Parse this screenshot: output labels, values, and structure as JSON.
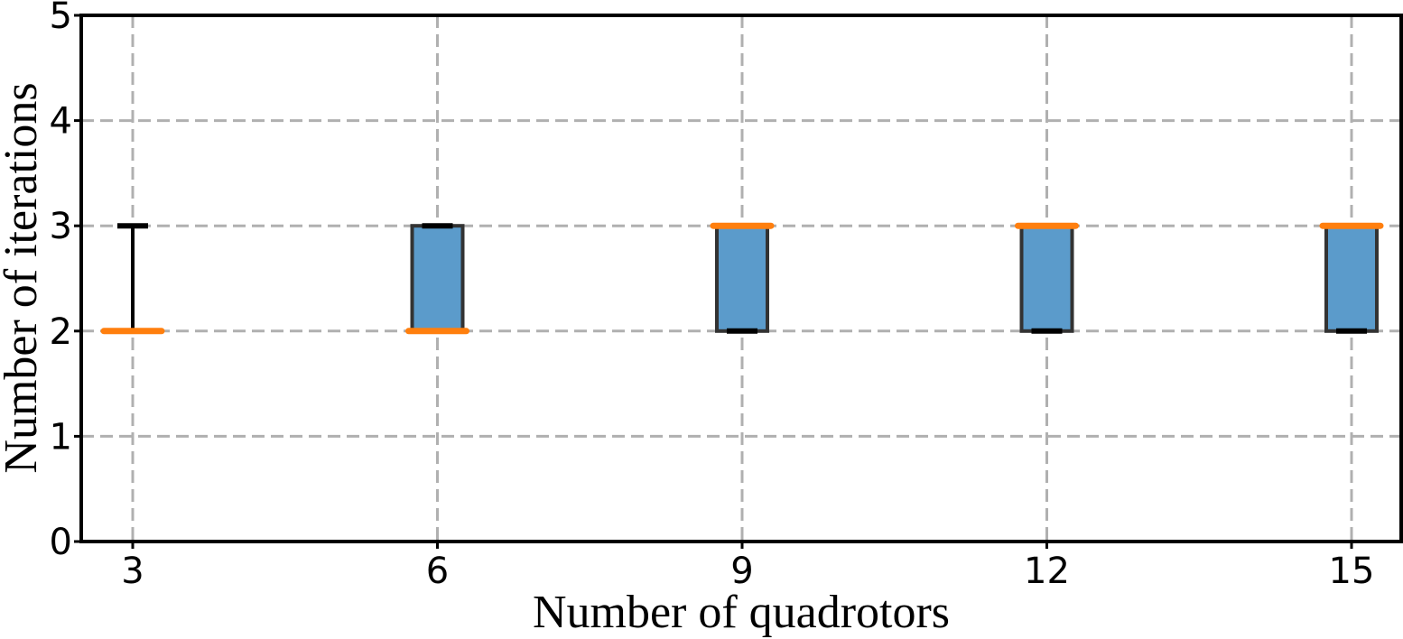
{
  "chart_data": {
    "type": "box",
    "title": "",
    "xlabel": "Number of quadrotors",
    "ylabel": "Number of iterations",
    "categories": [
      "3",
      "6",
      "9",
      "12",
      "15"
    ],
    "ylim": [
      0,
      5
    ],
    "yticks": [
      "0",
      "1",
      "2",
      "3",
      "4",
      "5"
    ],
    "grid": true,
    "boxes": [
      {
        "category": "3",
        "whisker_low": 2,
        "q1": 2,
        "median": 2,
        "q3": 2,
        "whisker_high": 3
      },
      {
        "category": "6",
        "whisker_low": 2,
        "q1": 2,
        "median": 2,
        "q3": 3,
        "whisker_high": 3
      },
      {
        "category": "9",
        "whisker_low": 2,
        "q1": 2,
        "median": 3,
        "q3": 3,
        "whisker_high": 3
      },
      {
        "category": "12",
        "whisker_low": 2,
        "q1": 2,
        "median": 3,
        "q3": 3,
        "whisker_high": 3
      },
      {
        "category": "15",
        "whisker_low": 2,
        "q1": 2,
        "median": 3,
        "q3": 3,
        "whisker_high": 3
      }
    ],
    "colors": {
      "box_fill": "#5b9bcb",
      "box_edge": "#333333",
      "median": "#ff7f0e",
      "whisker": "#000000"
    }
  }
}
